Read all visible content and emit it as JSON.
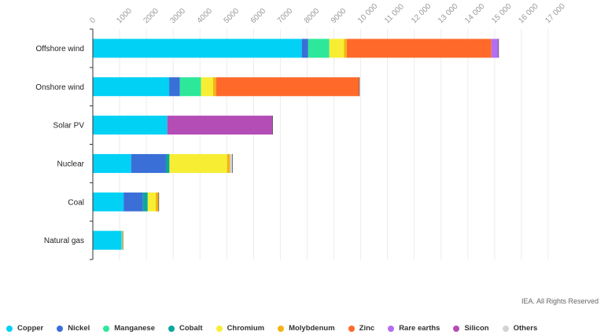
{
  "chart_data": {
    "type": "bar",
    "orientation": "horizontal",
    "stacked": true,
    "categories": [
      "Offshore wind",
      "Onshore wind",
      "Solar PV",
      "Nuclear",
      "Coal",
      "Natural gas"
    ],
    "series": [
      {
        "name": "Copper",
        "color": "#00d1f5",
        "values": [
          7800,
          2850,
          2780,
          1430,
          1150,
          1080
        ]
      },
      {
        "name": "Nickel",
        "color": "#3a6fd8",
        "values": [
          240,
          400,
          0,
          1300,
          720,
          0
        ]
      },
      {
        "name": "Manganese",
        "color": "#2de89a",
        "values": [
          790,
          790,
          0,
          0,
          0,
          0
        ]
      },
      {
        "name": "Cobalt",
        "color": "#0aa89c",
        "values": [
          0,
          0,
          0,
          130,
          180,
          0
        ]
      },
      {
        "name": "Chromium",
        "color": "#f7ee34",
        "values": [
          550,
          450,
          0,
          2150,
          300,
          40
        ]
      },
      {
        "name": "Molybdenum",
        "color": "#f3b412",
        "values": [
          100,
          110,
          0,
          110,
          110,
          0
        ]
      },
      {
        "name": "Zinc",
        "color": "#ff6a2b",
        "values": [
          5400,
          5350,
          0,
          0,
          0,
          0
        ]
      },
      {
        "name": "Rare earths",
        "color": "#b36ef2",
        "values": [
          265,
          0,
          0,
          0,
          0,
          0
        ]
      },
      {
        "name": "Silicon",
        "color": "#b44db6",
        "values": [
          0,
          0,
          3930,
          0,
          0,
          0
        ]
      },
      {
        "name": "Others",
        "color": "#d3d3d3",
        "values": [
          0,
          0,
          0,
          90,
          0,
          0
        ]
      }
    ],
    "xlim": [
      0,
      17000
    ],
    "xticks": [
      0,
      1000,
      2000,
      3000,
      4000,
      5000,
      6000,
      7000,
      8000,
      9000,
      10000,
      11000,
      12000,
      13000,
      14000,
      15000,
      16000,
      17000
    ],
    "xtick_labels": [
      "0",
      "1000",
      "2000",
      "3000",
      "4000",
      "5000",
      "6000",
      "7000",
      "8000",
      "9000",
      "10 000",
      "11 000",
      "12 000",
      "13 000",
      "14 000",
      "15 000",
      "16 000",
      "17 000"
    ],
    "legend_position": "bottom",
    "grid": true
  },
  "credit": "IEA. All Rights Reserved"
}
